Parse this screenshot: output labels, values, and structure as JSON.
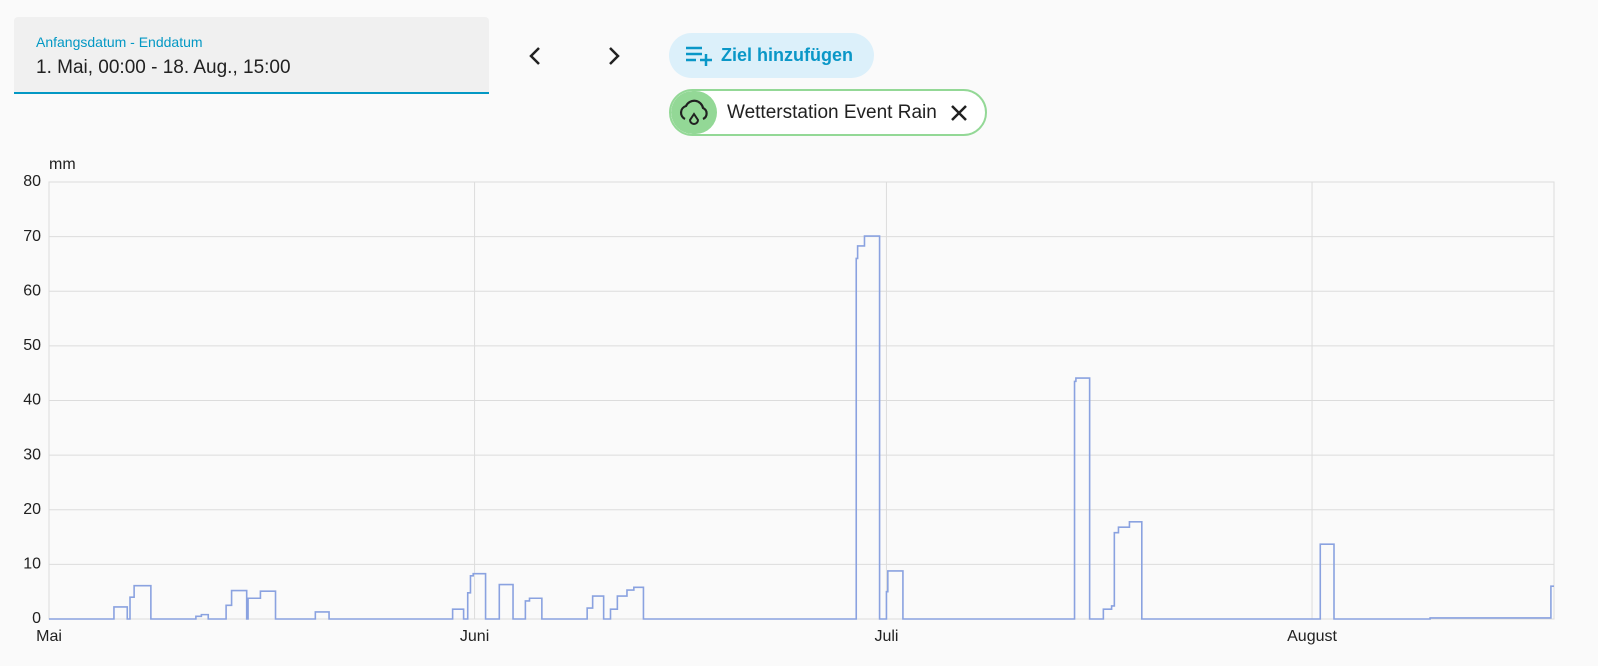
{
  "header": {
    "date_range": {
      "label": "Anfangsdatum - Enddatum",
      "value": "1. Mai, 00:00 - 18. Aug., 15:00"
    },
    "add_target_button": "Ziel hinzufügen",
    "target_chip": "Wetterstation Event Rain"
  },
  "chart_data": {
    "type": "line",
    "ylabel": "mm",
    "color": "#8aa2e0",
    "grid": true,
    "xlim": [
      0,
      109.625
    ],
    "ylim": [
      0,
      80
    ],
    "xticks": [
      {
        "value": 0,
        "label": "Mai"
      },
      {
        "value": 31,
        "label": "Juni"
      },
      {
        "value": 61,
        "label": "Juli"
      },
      {
        "value": 92,
        "label": "August"
      }
    ],
    "yticks": [
      0,
      10,
      20,
      30,
      40,
      50,
      60,
      70,
      80
    ],
    "x": [
      0,
      4.73,
      4.73,
      5.7,
      5.7,
      5.9,
      5.9,
      6.2,
      6.2,
      7.42,
      7.42,
      10.7,
      10.7,
      11.1,
      11.1,
      11.6,
      11.6,
      12.9,
      12.9,
      13.3,
      13.3,
      14.4,
      14.4,
      14.5,
      14.5,
      15.4,
      15.4,
      16.5,
      16.5,
      19.4,
      19.4,
      20.4,
      20.4,
      29.4,
      29.4,
      30.2,
      30.2,
      30.5,
      30.5,
      30.7,
      30.7,
      30.9,
      30.9,
      31.8,
      31.8,
      32.8,
      32.8,
      33.8,
      33.8,
      34.7,
      34.7,
      35.0,
      35.0,
      35.9,
      35.9,
      39.2,
      39.2,
      39.6,
      39.6,
      40.4,
      40.4,
      40.9,
      40.9,
      41.4,
      41.4,
      42.1,
      42.1,
      42.6,
      42.6,
      43.3,
      43.3,
      58.8,
      58.8,
      58.9,
      58.9,
      59.4,
      59.4,
      60.5,
      60.5,
      61.0,
      61.0,
      61.1,
      61.1,
      62.2,
      62.2,
      74.7,
      74.7,
      74.8,
      74.8,
      75.8,
      75.8,
      76.8,
      76.8,
      77.4,
      77.4,
      77.6,
      77.6,
      77.9,
      77.9,
      78.7,
      78.7,
      79.6,
      79.6,
      92.6,
      92.6,
      93.6,
      93.6,
      100.6,
      100.6,
      109.4,
      109.4,
      109.625
    ],
    "values": [
      0,
      0,
      2.2,
      2.2,
      0,
      0,
      4,
      4,
      6.1,
      6.1,
      0,
      0,
      0.5,
      0.5,
      0.8,
      0.8,
      0,
      0,
      2.5,
      2.5,
      5.2,
      5.2,
      0,
      0,
      3.8,
      3.8,
      5.1,
      5.1,
      0,
      0,
      1.3,
      1.3,
      0,
      0,
      1.8,
      1.8,
      0,
      0,
      4.8,
      4.8,
      7.9,
      7.9,
      8.3,
      8.3,
      0,
      0,
      6.3,
      6.3,
      0,
      0,
      3.3,
      3.3,
      3.8,
      3.8,
      0,
      0,
      2,
      2,
      4.2,
      4.2,
      0,
      0,
      1.8,
      1.8,
      4.2,
      4.2,
      5.3,
      5.3,
      5.8,
      5.8,
      0,
      0,
      66,
      66,
      68.3,
      68.3,
      70.1,
      70.1,
      0,
      0,
      5,
      5,
      8.8,
      8.8,
      0,
      0,
      43.5,
      43.5,
      44.1,
      44.1,
      0,
      0,
      1.8,
      1.8,
      2.4,
      2.4,
      15.8,
      15.8,
      16.8,
      16.8,
      17.8,
      17.8,
      0,
      0,
      13.7,
      13.7,
      0,
      0,
      0.2,
      0.2,
      6,
      6
    ]
  }
}
